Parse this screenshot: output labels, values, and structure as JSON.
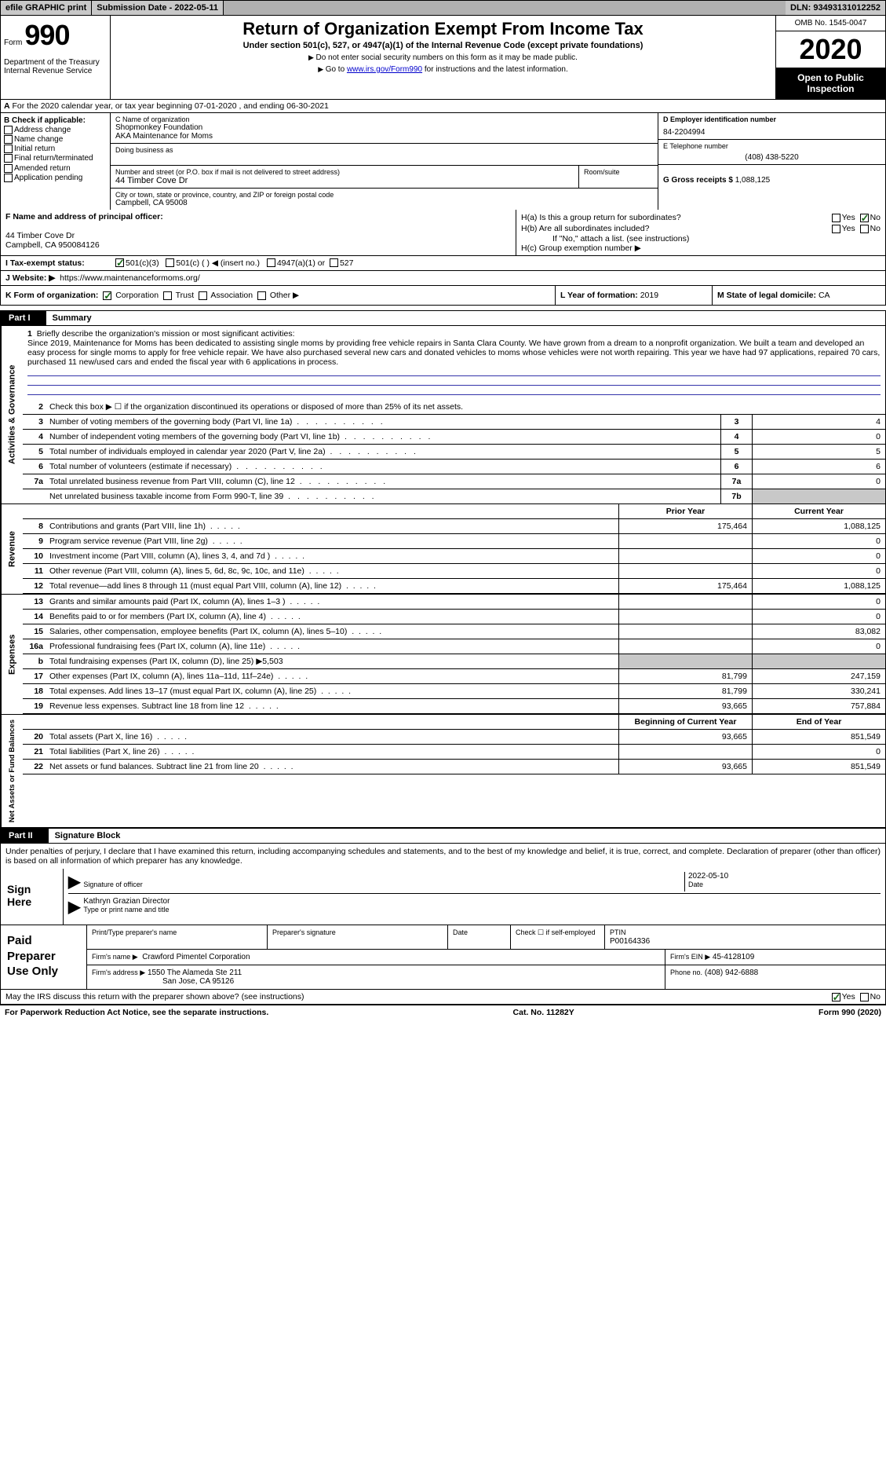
{
  "topbar": {
    "efile": "efile GRAPHIC print",
    "submission": "Submission Date - 2022-05-11",
    "dln": "DLN: 93493131012252"
  },
  "header": {
    "form_word": "Form",
    "form_num": "990",
    "dept": "Department of the Treasury\nInternal Revenue Service",
    "title": "Return of Organization Exempt From Income Tax",
    "subtitle": "Under section 501(c), 527, or 4947(a)(1) of the Internal Revenue Code (except private foundations)",
    "note1": "Do not enter social security numbers on this form as it may be made public.",
    "note2_pre": "Go to ",
    "note2_link": "www.irs.gov/Form990",
    "note2_post": " for instructions and the latest information.",
    "omb": "OMB No. 1545-0047",
    "year": "2020",
    "open": "Open to Public Inspection"
  },
  "sect_a": "For the 2020 calendar year, or tax year beginning 07-01-2020   , and ending 06-30-2021",
  "col_b": {
    "label": "B Check if applicable:",
    "items": [
      "Address change",
      "Name change",
      "Initial return",
      "Final return/terminated",
      "Amended return",
      "Application pending"
    ]
  },
  "col_c": {
    "name_label": "C Name of organization",
    "name1": "Shopmonkey Foundation",
    "name2": "AKA Maintenance for Moms",
    "dba_label": "Doing business as",
    "street_label": "Number and street (or P.O. box if mail is not delivered to street address)",
    "street": "44 Timber Cove Dr",
    "room_label": "Room/suite",
    "city_label": "City or town, state or province, country, and ZIP or foreign postal code",
    "city": "Campbell, CA  95008"
  },
  "col_d": {
    "ein_label": "D Employer identification number",
    "ein": "84-2204994",
    "tel_label": "E Telephone number",
    "tel": "(408) 438-5220",
    "gross_label": "G Gross receipts $",
    "gross": "1,088,125"
  },
  "officer": {
    "label": "F  Name and address of principal officer:",
    "line1": "44 Timber Cove Dr",
    "line2": "Campbell, CA  950084126"
  },
  "h": {
    "a": "H(a)  Is this a group return for subordinates?",
    "b": "H(b)  Are all subordinates included?",
    "ifno": "If \"No,\" attach a list. (see instructions)",
    "c": "H(c)  Group exemption number ▶",
    "yes": "Yes",
    "no": "No"
  },
  "tax_status": {
    "label": "I  Tax-exempt status:",
    "o1": "501(c)(3)",
    "o2": "501(c) (   ) ◀ (insert no.)",
    "o3": "4947(a)(1) or",
    "o4": "527"
  },
  "website": {
    "label": "J Website: ▶",
    "url": "https://www.maintenanceformoms.org/"
  },
  "k": {
    "label": "K Form of organization:",
    "corp": "Corporation",
    "trust": "Trust",
    "assoc": "Association",
    "other": "Other ▶"
  },
  "l": {
    "label": "L Year of formation:",
    "val": "2019"
  },
  "m": {
    "label": "M State of legal domicile:",
    "val": "CA"
  },
  "parts": {
    "p1": "Part I",
    "p1_title": "Summary",
    "p2": "Part II",
    "p2_title": "Signature Block"
  },
  "mission": {
    "line1_label": "Briefly describe the organization's mission or most significant activities:",
    "text": "Since 2019, Maintenance for Moms has been dedicated to assisting single moms by providing free vehicle repairs in Santa Clara County. We have grown from a dream to a nonprofit organization. We built a team and developed an easy process for single moms to apply for free vehicle repair. We have also purchased several new cars and donated vehicles to moms whose vehicles were not worth repairing. This year we have had 97 applications, repaired 70 cars, purchased 11 new/used cars and ended the fiscal year with 6 applications in process."
  },
  "gov_lines": {
    "l2": "Check this box ▶ ☐  if the organization discontinued its operations or disposed of more than 25% of its net assets.",
    "l3": {
      "num": "3",
      "desc": "Number of voting members of the governing body (Part VI, line 1a)",
      "box": "3",
      "val": "4"
    },
    "l4": {
      "num": "4",
      "desc": "Number of independent voting members of the governing body (Part VI, line 1b)",
      "box": "4",
      "val": "0"
    },
    "l5": {
      "num": "5",
      "desc": "Total number of individuals employed in calendar year 2020 (Part V, line 2a)",
      "box": "5",
      "val": "5"
    },
    "l6": {
      "num": "6",
      "desc": "Total number of volunteers (estimate if necessary)",
      "box": "6",
      "val": "6"
    },
    "l7a": {
      "num": "7a",
      "desc": "Total unrelated business revenue from Part VIII, column (C), line 12",
      "box": "7a",
      "val": "0"
    },
    "l7b": {
      "num": "",
      "desc": "Net unrelated business taxable income from Form 990-T, line 39",
      "box": "7b",
      "val": ""
    }
  },
  "hdrs": {
    "prior": "Prior Year",
    "current": "Current Year",
    "begin": "Beginning of Current Year",
    "end": "End of Year"
  },
  "revenue": [
    {
      "num": "8",
      "desc": "Contributions and grants (Part VIII, line 1h)",
      "prior": "175,464",
      "curr": "1,088,125"
    },
    {
      "num": "9",
      "desc": "Program service revenue (Part VIII, line 2g)",
      "prior": "",
      "curr": "0"
    },
    {
      "num": "10",
      "desc": "Investment income (Part VIII, column (A), lines 3, 4, and 7d )",
      "prior": "",
      "curr": "0"
    },
    {
      "num": "11",
      "desc": "Other revenue (Part VIII, column (A), lines 5, 6d, 8c, 9c, 10c, and 11e)",
      "prior": "",
      "curr": "0"
    },
    {
      "num": "12",
      "desc": "Total revenue—add lines 8 through 11 (must equal Part VIII, column (A), line 12)",
      "prior": "175,464",
      "curr": "1,088,125"
    }
  ],
  "expenses": [
    {
      "num": "13",
      "desc": "Grants and similar amounts paid (Part IX, column (A), lines 1–3 )",
      "prior": "",
      "curr": "0"
    },
    {
      "num": "14",
      "desc": "Benefits paid to or for members (Part IX, column (A), line 4)",
      "prior": "",
      "curr": "0"
    },
    {
      "num": "15",
      "desc": "Salaries, other compensation, employee benefits (Part IX, column (A), lines 5–10)",
      "prior": "",
      "curr": "83,082"
    },
    {
      "num": "16a",
      "desc": "Professional fundraising fees (Part IX, column (A), line 11e)",
      "prior": "",
      "curr": "0"
    },
    {
      "num": "b",
      "desc": "Total fundraising expenses (Part IX, column (D), line 25) ▶5,503",
      "onecol": true
    },
    {
      "num": "17",
      "desc": "Other expenses (Part IX, column (A), lines 11a–11d, 11f–24e)",
      "prior": "81,799",
      "curr": "247,159"
    },
    {
      "num": "18",
      "desc": "Total expenses. Add lines 13–17 (must equal Part IX, column (A), line 25)",
      "prior": "81,799",
      "curr": "330,241"
    },
    {
      "num": "19",
      "desc": "Revenue less expenses. Subtract line 18 from line 12",
      "prior": "93,665",
      "curr": "757,884"
    }
  ],
  "netassets": [
    {
      "num": "20",
      "desc": "Total assets (Part X, line 16)",
      "prior": "93,665",
      "curr": "851,549"
    },
    {
      "num": "21",
      "desc": "Total liabilities (Part X, line 26)",
      "prior": "",
      "curr": "0"
    },
    {
      "num": "22",
      "desc": "Net assets or fund balances. Subtract line 21 from line 20",
      "prior": "93,665",
      "curr": "851,549"
    }
  ],
  "sidelabels": {
    "gov": "Activities & Governance",
    "rev": "Revenue",
    "exp": "Expenses",
    "net": "Net Assets or Fund Balances"
  },
  "sig": {
    "perjury": "Under penalties of perjury, I declare that I have examined this return, including accompanying schedules and statements, and to the best of my knowledge and belief, it is true, correct, and complete. Declaration of preparer (other than officer) is based on all information of which preparer has any knowledge.",
    "sign_here": "Sign Here",
    "sig_officer": "Signature of officer",
    "date": "2022-05-10",
    "date_label": "Date",
    "name": "Kathryn Grazian  Director",
    "name_label": "Type or print name and title"
  },
  "paid": {
    "label": "Paid Preparer Use Only",
    "r1": {
      "name_label": "Print/Type preparer's name",
      "sig_label": "Preparer's signature",
      "date_label": "Date",
      "check_label": "Check ☐ if self-employed",
      "ptin_label": "PTIN",
      "ptin": "P00164336"
    },
    "r2": {
      "firm_label": "Firm's name   ▶",
      "firm": "Crawford Pimentel Corporation",
      "ein_label": "Firm's EIN ▶",
      "ein": "45-4128109"
    },
    "r3": {
      "addr_label": "Firm's address ▶",
      "addr1": "1550 The Alameda Ste 211",
      "addr2": "San Jose, CA  95126",
      "phone_label": "Phone no.",
      "phone": "(408) 942-6888"
    }
  },
  "discuss": {
    "text": "May the IRS discuss this return with the preparer shown above? (see instructions)",
    "yes": "Yes",
    "no": "No"
  },
  "footer": {
    "left": "For Paperwork Reduction Act Notice, see the separate instructions.",
    "mid": "Cat. No. 11282Y",
    "right": "Form 990 (2020)"
  }
}
